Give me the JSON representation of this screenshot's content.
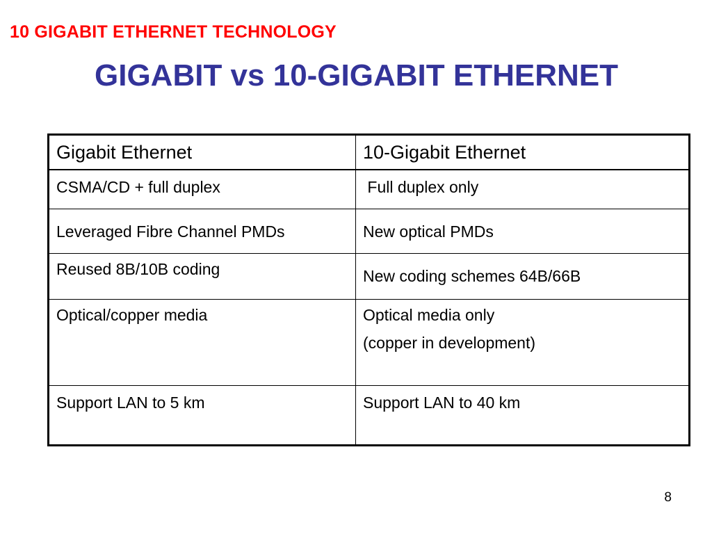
{
  "header": {
    "title": "10 GIGABIT ETHERNET TECHNOLOGY"
  },
  "slide": {
    "title": "GIGABIT vs 10-GIGABIT ETHERNET",
    "page_number": "8"
  },
  "table": {
    "headers": [
      "Gigabit Ethernet",
      "10-Gigabit Ethernet"
    ],
    "rows": [
      {
        "gigabit": "CSMA/CD + full duplex",
        "ten_gigabit": " Full duplex only"
      },
      {
        "gigabit": "Leveraged Fibre Channel PMDs",
        "ten_gigabit": "New optical PMDs"
      },
      {
        "gigabit": "Reused 8B/10B coding",
        "ten_gigabit": "New coding schemes 64B/66B"
      },
      {
        "gigabit": "Optical/copper media",
        "ten_gigabit": "Optical media only",
        "ten_gigabit_line2": "(copper in development)"
      },
      {
        "gigabit": "Support LAN to 5 km",
        "ten_gigabit": "Support LAN to 40 km"
      }
    ]
  }
}
